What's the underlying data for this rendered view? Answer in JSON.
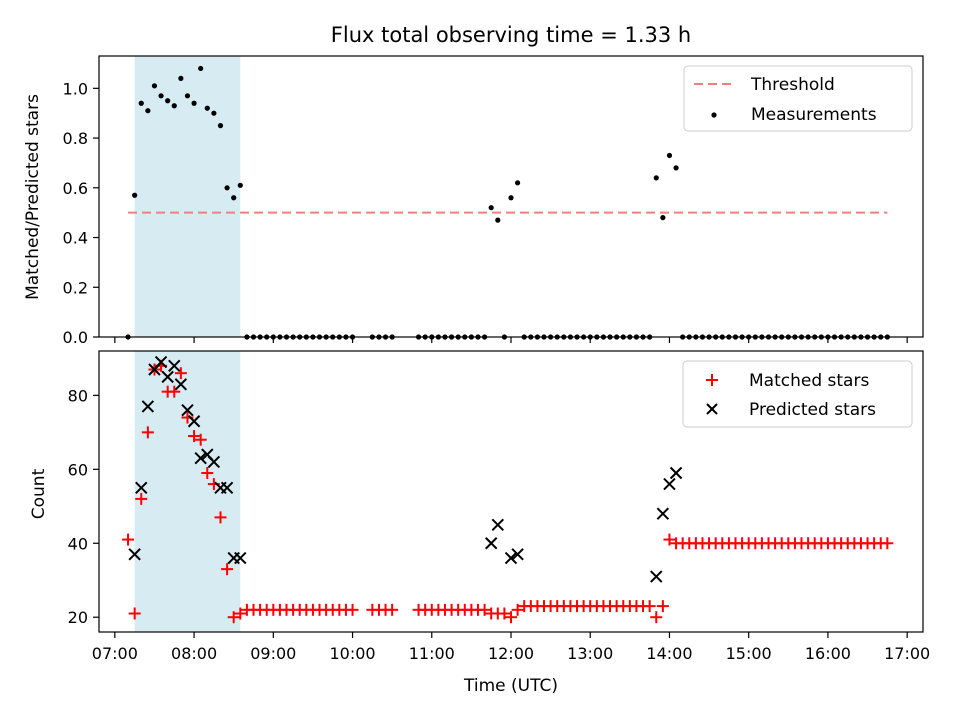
{
  "chart_data": [
    {
      "type": "scatter",
      "title": "Flux total observing time = 1.33 h",
      "ylabel": "Matched/Predicted stars",
      "xlabel": "",
      "ylim": [
        0,
        1.13
      ],
      "yticks": [
        "0.0",
        "0.2",
        "0.4",
        "0.6",
        "0.8",
        "1.0"
      ],
      "highlight_span": [
        "07:15",
        "08:35"
      ],
      "threshold": {
        "name": "Threshold",
        "value": 0.5,
        "x_range": [
          "07:10",
          "16:45"
        ],
        "color": "#f08080"
      },
      "series": [
        {
          "name": "Measurements",
          "marker": "dot",
          "color": "#000000",
          "points": [
            [
              "07:10",
              0.0
            ],
            [
              "07:15",
              0.57
            ],
            [
              "07:20",
              0.94
            ],
            [
              "07:25",
              0.91
            ],
            [
              "07:30",
              1.01
            ],
            [
              "07:35",
              0.97
            ],
            [
              "07:40",
              0.95
            ],
            [
              "07:45",
              0.93
            ],
            [
              "07:50",
              1.04
            ],
            [
              "07:55",
              0.97
            ],
            [
              "08:00",
              0.94
            ],
            [
              "08:05",
              1.08
            ],
            [
              "08:10",
              0.92
            ],
            [
              "08:15",
              0.9
            ],
            [
              "08:20",
              0.85
            ],
            [
              "08:25",
              0.6
            ],
            [
              "08:30",
              0.56
            ],
            [
              "08:35",
              0.61
            ],
            [
              "11:45",
              0.52
            ],
            [
              "11:50",
              0.47
            ],
            [
              "12:00",
              0.56
            ],
            [
              "12:05",
              0.62
            ],
            [
              "13:50",
              0.64
            ],
            [
              "13:55",
              0.48
            ],
            [
              "14:00",
              0.73
            ],
            [
              "14:05",
              0.68
            ]
          ],
          "zero_runs": [
            {
              "start": "08:40",
              "end": "10:00",
              "step_min": 5
            },
            {
              "start": "10:15",
              "end": "10:30",
              "step_min": 5
            },
            {
              "start": "10:50",
              "end": "11:40",
              "step_min": 5
            },
            {
              "start": "11:55",
              "end": "11:55",
              "step_min": 5
            },
            {
              "start": "12:10",
              "end": "13:45",
              "step_min": 5
            },
            {
              "start": "14:10",
              "end": "16:45",
              "step_min": 5
            }
          ]
        }
      ],
      "legend": {
        "position": "top-right",
        "entries": [
          "Threshold",
          "Measurements"
        ]
      }
    },
    {
      "type": "scatter",
      "title": "",
      "ylabel": "Count",
      "xlabel": "Time (UTC)",
      "ylim": [
        16,
        92
      ],
      "yticks": [
        "20",
        "40",
        "60",
        "80"
      ],
      "xticks": [
        "07:00",
        "08:00",
        "09:00",
        "10:00",
        "11:00",
        "12:00",
        "13:00",
        "14:00",
        "15:00",
        "16:00",
        "17:00"
      ],
      "highlight_span": [
        "07:15",
        "08:35"
      ],
      "series": [
        {
          "name": "Matched stars",
          "marker": "plus",
          "color": "#ff0000",
          "points": [
            [
              "07:10",
              41
            ],
            [
              "07:15",
              21
            ],
            [
              "07:20",
              52
            ],
            [
              "07:25",
              70
            ],
            [
              "07:30",
              87
            ],
            [
              "07:35",
              88
            ],
            [
              "07:40",
              81
            ],
            [
              "07:45",
              81
            ],
            [
              "07:50",
              86
            ],
            [
              "07:55",
              74
            ],
            [
              "08:00",
              69
            ],
            [
              "08:05",
              68
            ],
            [
              "08:10",
              59
            ],
            [
              "08:15",
              56
            ],
            [
              "08:20",
              47
            ],
            [
              "08:25",
              33
            ],
            [
              "08:30",
              20
            ],
            [
              "08:35",
              21
            ],
            [
              "11:45",
              21
            ],
            [
              "11:50",
              21
            ],
            [
              "11:55",
              21
            ],
            [
              "12:00",
              20
            ],
            [
              "12:05",
              22
            ],
            [
              "13:50",
              20
            ],
            [
              "13:55",
              23
            ],
            [
              "14:00",
              41
            ]
          ],
          "constant_runs": [
            {
              "start": "08:40",
              "end": "10:00",
              "step_min": 5,
              "value": 22
            },
            {
              "start": "10:15",
              "end": "10:30",
              "step_min": 5,
              "value": 22
            },
            {
              "start": "10:50",
              "end": "11:40",
              "step_min": 5,
              "value": 22
            },
            {
              "start": "12:10",
              "end": "13:45",
              "step_min": 5,
              "value": 23
            },
            {
              "start": "14:05",
              "end": "16:45",
              "step_min": 5,
              "value": 40
            }
          ]
        },
        {
          "name": "Predicted stars",
          "marker": "x",
          "color": "#000000",
          "points": [
            [
              "07:15",
              37
            ],
            [
              "07:20",
              55
            ],
            [
              "07:25",
              77
            ],
            [
              "07:30",
              87
            ],
            [
              "07:35",
              89
            ],
            [
              "07:40",
              85
            ],
            [
              "07:45",
              88
            ],
            [
              "07:50",
              83
            ],
            [
              "07:55",
              76
            ],
            [
              "08:00",
              73
            ],
            [
              "08:05",
              63
            ],
            [
              "08:10",
              64
            ],
            [
              "08:15",
              62
            ],
            [
              "08:20",
              55
            ],
            [
              "08:25",
              55
            ],
            [
              "08:30",
              36
            ],
            [
              "08:35",
              36
            ],
            [
              "11:45",
              40
            ],
            [
              "11:50",
              45
            ],
            [
              "12:00",
              36
            ],
            [
              "12:05",
              37
            ],
            [
              "13:50",
              31
            ],
            [
              "13:55",
              48
            ],
            [
              "14:00",
              56
            ],
            [
              "14:05",
              59
            ]
          ]
        }
      ],
      "legend": {
        "position": "top-right",
        "entries": [
          "Matched stars",
          "Predicted stars"
        ]
      }
    }
  ]
}
